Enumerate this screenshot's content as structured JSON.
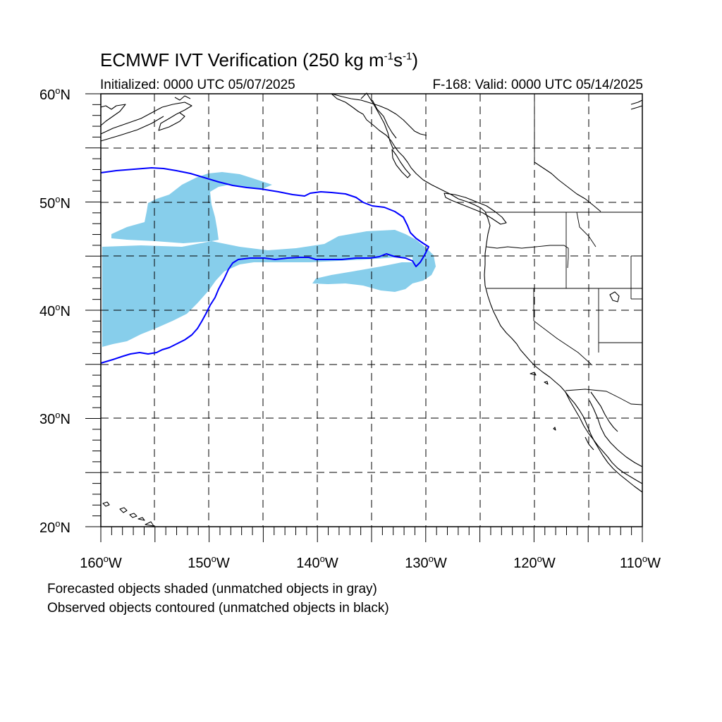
{
  "title_parts": {
    "main": "ECMWF IVT Verification (250 kg m",
    "exp1": "-1",
    "mid": "s",
    "exp2": "-1",
    "end": ")"
  },
  "init_text": "Initialized: 0000 UTC 05/07/2025",
  "valid_text": "F-168: Valid: 0000 UTC 05/14/2025",
  "footnote_1": "Forecasted objects shaded (unmatched objects in gray)",
  "footnote_2": "Observed objects contoured (unmatched objects in black)",
  "lat_labels": [
    {
      "value": 60,
      "deg": "o",
      "hemi": "N"
    },
    {
      "value": 50,
      "deg": "o",
      "hemi": "N"
    },
    {
      "value": 40,
      "deg": "o",
      "hemi": "N"
    },
    {
      "value": 30,
      "deg": "o",
      "hemi": "N"
    },
    {
      "value": 20,
      "deg": "o",
      "hemi": "N"
    }
  ],
  "lon_labels": [
    {
      "value": 160,
      "deg": "o",
      "hemi": "W"
    },
    {
      "value": 150,
      "deg": "o",
      "hemi": "W"
    },
    {
      "value": 140,
      "deg": "o",
      "hemi": "W"
    },
    {
      "value": 130,
      "deg": "o",
      "hemi": "W"
    },
    {
      "value": 120,
      "deg": "o",
      "hemi": "W"
    },
    {
      "value": 110,
      "deg": "o",
      "hemi": "W"
    }
  ],
  "map_extent": {
    "lon_min": -160,
    "lon_max": -110,
    "lat_min": 20,
    "lat_max": 60
  },
  "colors": {
    "forecast_fill": "#87ceeb",
    "observed_contour": "#0000ff",
    "coastline": "#000000",
    "grid": "#000000"
  }
}
